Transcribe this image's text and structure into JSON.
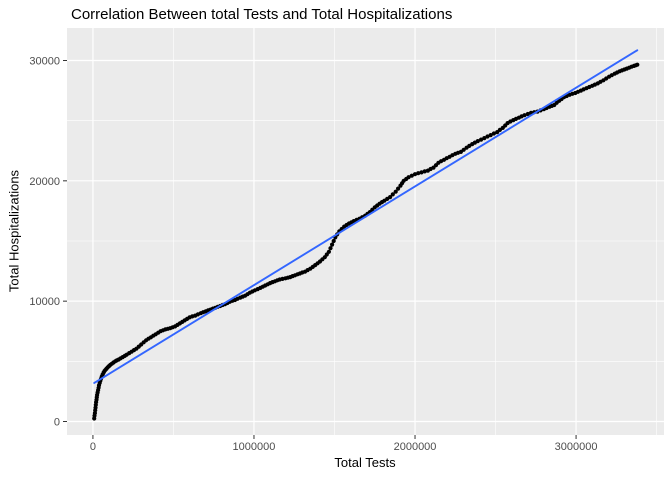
{
  "chart_data": {
    "type": "scatter",
    "title": "Correlation Between total Tests and Total Hospitalizations",
    "xlabel": "Total Tests",
    "ylabel": "Total Hospitalizations",
    "legend": "none",
    "grid": "major+minor",
    "panel_bg": "#EBEBEB",
    "grid_color": "#FFFFFF",
    "point_color": "#000000",
    "trend_color": "#3366FF",
    "tick_label_color": "#4D4D4D",
    "tick_mark_color": "#333333",
    "xlim": [
      -161000,
      3546000
    ],
    "ylim": [
      -1122,
      32700
    ],
    "x_ticks": {
      "values": [
        0,
        1000000,
        2000000,
        3000000
      ],
      "labels": [
        "0",
        "1000000",
        "2000000",
        "3000000"
      ]
    },
    "y_ticks": {
      "values": [
        0,
        10000,
        20000,
        30000
      ],
      "labels": [
        "0",
        "10000",
        "20000",
        "30000"
      ]
    },
    "x_minor": [
      500000,
      1500000,
      2500000,
      3500000
    ],
    "y_minor": [
      5000,
      15000,
      25000
    ],
    "trend_line": {
      "x1": 8000,
      "y1": 3200,
      "x2": 3380000,
      "y2": 30850
    },
    "points": [
      [
        8000,
        250
      ],
      [
        10000,
        480
      ],
      [
        12000,
        700
      ],
      [
        14000,
        930
      ],
      [
        16000,
        1150
      ],
      [
        18000,
        1380
      ],
      [
        20000,
        1600
      ],
      [
        22000,
        1800
      ],
      [
        24000,
        2000
      ],
      [
        26000,
        2200
      ],
      [
        29000,
        2400
      ],
      [
        32000,
        2600
      ],
      [
        35000,
        2800
      ],
      [
        38000,
        3000
      ],
      [
        42000,
        3200
      ],
      [
        46000,
        3380
      ],
      [
        50000,
        3550
      ],
      [
        55000,
        3730
      ],
      [
        60000,
        3900
      ],
      [
        66000,
        4060
      ],
      [
        72000,
        4200
      ],
      [
        78000,
        4300
      ],
      [
        85000,
        4400
      ],
      [
        92000,
        4500
      ],
      [
        100000,
        4600
      ],
      [
        108000,
        4700
      ],
      [
        118000,
        4800
      ],
      [
        128000,
        4900
      ],
      [
        138000,
        5000
      ],
      [
        148000,
        5080
      ],
      [
        160000,
        5150
      ],
      [
        172000,
        5250
      ],
      [
        185000,
        5350
      ],
      [
        198000,
        5450
      ],
      [
        210000,
        5550
      ],
      [
        225000,
        5680
      ],
      [
        240000,
        5800
      ],
      [
        255000,
        5930
      ],
      [
        270000,
        6050
      ],
      [
        285000,
        6220
      ],
      [
        300000,
        6400
      ],
      [
        315000,
        6580
      ],
      [
        330000,
        6750
      ],
      [
        345000,
        6880
      ],
      [
        360000,
        7000
      ],
      [
        375000,
        7130
      ],
      [
        390000,
        7250
      ],
      [
        405000,
        7380
      ],
      [
        420000,
        7500
      ],
      [
        435000,
        7580
      ],
      [
        450000,
        7650
      ],
      [
        465000,
        7700
      ],
      [
        480000,
        7750
      ],
      [
        495000,
        7830
      ],
      [
        510000,
        7900
      ],
      [
        525000,
        8030
      ],
      [
        540000,
        8150
      ],
      [
        555000,
        8280
      ],
      [
        570000,
        8400
      ],
      [
        585000,
        8530
      ],
      [
        600000,
        8650
      ],
      [
        617000,
        8730
      ],
      [
        635000,
        8800
      ],
      [
        652000,
        8900
      ],
      [
        670000,
        9000
      ],
      [
        685000,
        9080
      ],
      [
        700000,
        9150
      ],
      [
        715000,
        9230
      ],
      [
        730000,
        9300
      ],
      [
        745000,
        9380
      ],
      [
        760000,
        9450
      ],
      [
        775000,
        9530
      ],
      [
        790000,
        9600
      ],
      [
        805000,
        9680
      ],
      [
        820000,
        9750
      ],
      [
        835000,
        9850
      ],
      [
        850000,
        9950
      ],
      [
        866000,
        10030
      ],
      [
        882000,
        10100
      ],
      [
        898000,
        10200
      ],
      [
        915000,
        10300
      ],
      [
        930000,
        10380
      ],
      [
        945000,
        10450
      ],
      [
        960000,
        10580
      ],
      [
        975000,
        10700
      ],
      [
        990000,
        10800
      ],
      [
        1006000,
        10900
      ],
      [
        1023000,
        11000
      ],
      [
        1040000,
        11100
      ],
      [
        1055000,
        11200
      ],
      [
        1070000,
        11300
      ],
      [
        1085000,
        11400
      ],
      [
        1100000,
        11500
      ],
      [
        1115000,
        11580
      ],
      [
        1130000,
        11650
      ],
      [
        1145000,
        11730
      ],
      [
        1160000,
        11800
      ],
      [
        1177000,
        11850
      ],
      [
        1195000,
        11900
      ],
      [
        1210000,
        11950
      ],
      [
        1225000,
        12000
      ],
      [
        1240000,
        12080
      ],
      [
        1255000,
        12150
      ],
      [
        1270000,
        12230
      ],
      [
        1285000,
        12300
      ],
      [
        1300000,
        12380
      ],
      [
        1317000,
        12450
      ],
      [
        1333000,
        12580
      ],
      [
        1350000,
        12700
      ],
      [
        1365000,
        12850
      ],
      [
        1380000,
        13000
      ],
      [
        1395000,
        13150
      ],
      [
        1410000,
        13300
      ],
      [
        1425000,
        13480
      ],
      [
        1440000,
        13650
      ],
      [
        1452000,
        13880
      ],
      [
        1465000,
        14100
      ],
      [
        1475000,
        14400
      ],
      [
        1485000,
        14700
      ],
      [
        1495000,
        15000
      ],
      [
        1505000,
        15300
      ],
      [
        1517000,
        15550
      ],
      [
        1530000,
        15800
      ],
      [
        1545000,
        16000
      ],
      [
        1560000,
        16200
      ],
      [
        1575000,
        16330
      ],
      [
        1590000,
        16450
      ],
      [
        1605000,
        16550
      ],
      [
        1620000,
        16650
      ],
      [
        1637000,
        16750
      ],
      [
        1655000,
        16850
      ],
      [
        1672000,
        16980
      ],
      [
        1690000,
        17100
      ],
      [
        1705000,
        17250
      ],
      [
        1720000,
        17400
      ],
      [
        1735000,
        17600
      ],
      [
        1750000,
        17800
      ],
      [
        1765000,
        17950
      ],
      [
        1780000,
        18100
      ],
      [
        1795000,
        18230
      ],
      [
        1810000,
        18350
      ],
      [
        1827000,
        18500
      ],
      [
        1845000,
        18650
      ],
      [
        1862000,
        18870
      ],
      [
        1880000,
        19100
      ],
      [
        1895000,
        19350
      ],
      [
        1910000,
        19600
      ],
      [
        1920000,
        19800
      ],
      [
        1930000,
        20000
      ],
      [
        1945000,
        20150
      ],
      [
        1960000,
        20300
      ],
      [
        1980000,
        20430
      ],
      [
        2000000,
        20550
      ],
      [
        2020000,
        20630
      ],
      [
        2040000,
        20700
      ],
      [
        2060000,
        20780
      ],
      [
        2080000,
        20850
      ],
      [
        2097000,
        20980
      ],
      [
        2115000,
        21100
      ],
      [
        2130000,
        21300
      ],
      [
        2145000,
        21500
      ],
      [
        2162000,
        21630
      ],
      [
        2180000,
        21750
      ],
      [
        2197000,
        21880
      ],
      [
        2215000,
        22000
      ],
      [
        2232000,
        22130
      ],
      [
        2250000,
        22250
      ],
      [
        2267000,
        22330
      ],
      [
        2285000,
        22400
      ],
      [
        2302000,
        22580
      ],
      [
        2320000,
        22750
      ],
      [
        2337000,
        22900
      ],
      [
        2355000,
        23050
      ],
      [
        2372000,
        23180
      ],
      [
        2390000,
        23300
      ],
      [
        2410000,
        23430
      ],
      [
        2430000,
        23550
      ],
      [
        2450000,
        23680
      ],
      [
        2470000,
        23800
      ],
      [
        2490000,
        23930
      ],
      [
        2510000,
        24050
      ],
      [
        2527000,
        24230
      ],
      [
        2545000,
        24400
      ],
      [
        2560000,
        24600
      ],
      [
        2575000,
        24800
      ],
      [
        2592000,
        24930
      ],
      [
        2610000,
        25050
      ],
      [
        2627000,
        25150
      ],
      [
        2645000,
        25250
      ],
      [
        2662000,
        25350
      ],
      [
        2680000,
        25450
      ],
      [
        2700000,
        25550
      ],
      [
        2720000,
        25650
      ],
      [
        2740000,
        25700
      ],
      [
        2760000,
        25750
      ],
      [
        2780000,
        25850
      ],
      [
        2800000,
        25950
      ],
      [
        2817000,
        26050
      ],
      [
        2835000,
        26150
      ],
      [
        2850000,
        26230
      ],
      [
        2865000,
        26300
      ],
      [
        2880000,
        26480
      ],
      [
        2895000,
        26650
      ],
      [
        2910000,
        26800
      ],
      [
        2925000,
        26950
      ],
      [
        2942000,
        27050
      ],
      [
        2960000,
        27150
      ],
      [
        2977000,
        27230
      ],
      [
        2995000,
        27300
      ],
      [
        3012000,
        27400
      ],
      [
        3030000,
        27500
      ],
      [
        3047000,
        27600
      ],
      [
        3065000,
        27700
      ],
      [
        3082000,
        27800
      ],
      [
        3100000,
        27900
      ],
      [
        3117000,
        28000
      ],
      [
        3135000,
        28100
      ],
      [
        3152000,
        28230
      ],
      [
        3170000,
        28350
      ],
      [
        3187000,
        28500
      ],
      [
        3205000,
        28650
      ],
      [
        3222000,
        28780
      ],
      [
        3240000,
        28900
      ],
      [
        3255000,
        29000
      ],
      [
        3270000,
        29100
      ],
      [
        3285000,
        29180
      ],
      [
        3300000,
        29250
      ],
      [
        3315000,
        29330
      ],
      [
        3330000,
        29400
      ],
      [
        3345000,
        29480
      ],
      [
        3360000,
        29550
      ],
      [
        3370000,
        29600
      ],
      [
        3380000,
        29650
      ]
    ]
  }
}
